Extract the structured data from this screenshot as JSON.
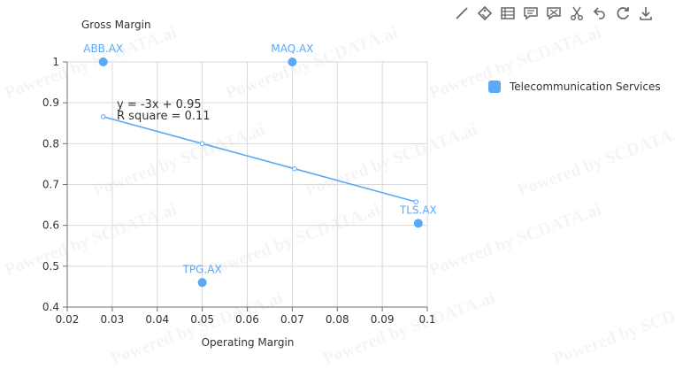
{
  "chart_data": {
    "type": "scatter",
    "title": "",
    "xlabel": "Operating Margin",
    "ylabel": "Gross Margin",
    "xlim": [
      0.02,
      0.1
    ],
    "ylim": [
      0.4,
      1
    ],
    "xticks": [
      "0.02",
      "0.03",
      "0.04",
      "0.05",
      "0.06",
      "0.07",
      "0.08",
      "0.09",
      "0.1"
    ],
    "yticks": [
      "0.4",
      "0.5",
      "0.6",
      "0.7",
      "0.8",
      "0.9",
      "1"
    ],
    "grid": true,
    "legend_position": "right",
    "series": [
      {
        "name": "Telecommunication Services",
        "color": "#5ba8f5",
        "points": [
          {
            "label": "ABB.AX",
            "x": 0.028,
            "y": 1.0
          },
          {
            "label": "MAQ.AX",
            "x": 0.07,
            "y": 1.0
          },
          {
            "label": "TLS.AX",
            "x": 0.098,
            "y": 0.605
          },
          {
            "label": "TPG.AX",
            "x": 0.05,
            "y": 0.46
          }
        ]
      }
    ],
    "trendline": {
      "equation": "y = -3x + 0.95",
      "r_square": "R square = 0.11",
      "points": [
        {
          "x": 0.028,
          "y": 0.866
        },
        {
          "x": 0.05,
          "y": 0.8
        },
        {
          "x": 0.0705,
          "y": 0.7385
        },
        {
          "x": 0.0975,
          "y": 0.6575
        }
      ]
    }
  },
  "watermark_text": "Powered by SCDATA.ai",
  "toolbar": {
    "icons": [
      "line-chart-icon",
      "tag-icon",
      "data-view-icon",
      "comment-icon",
      "comment-off-icon",
      "scissors-icon",
      "undo-icon",
      "refresh-icon",
      "download-icon"
    ]
  },
  "colors": {
    "accent": "#5ba8f5",
    "grid": "#d9d9d9",
    "axis": "#6e7079"
  }
}
